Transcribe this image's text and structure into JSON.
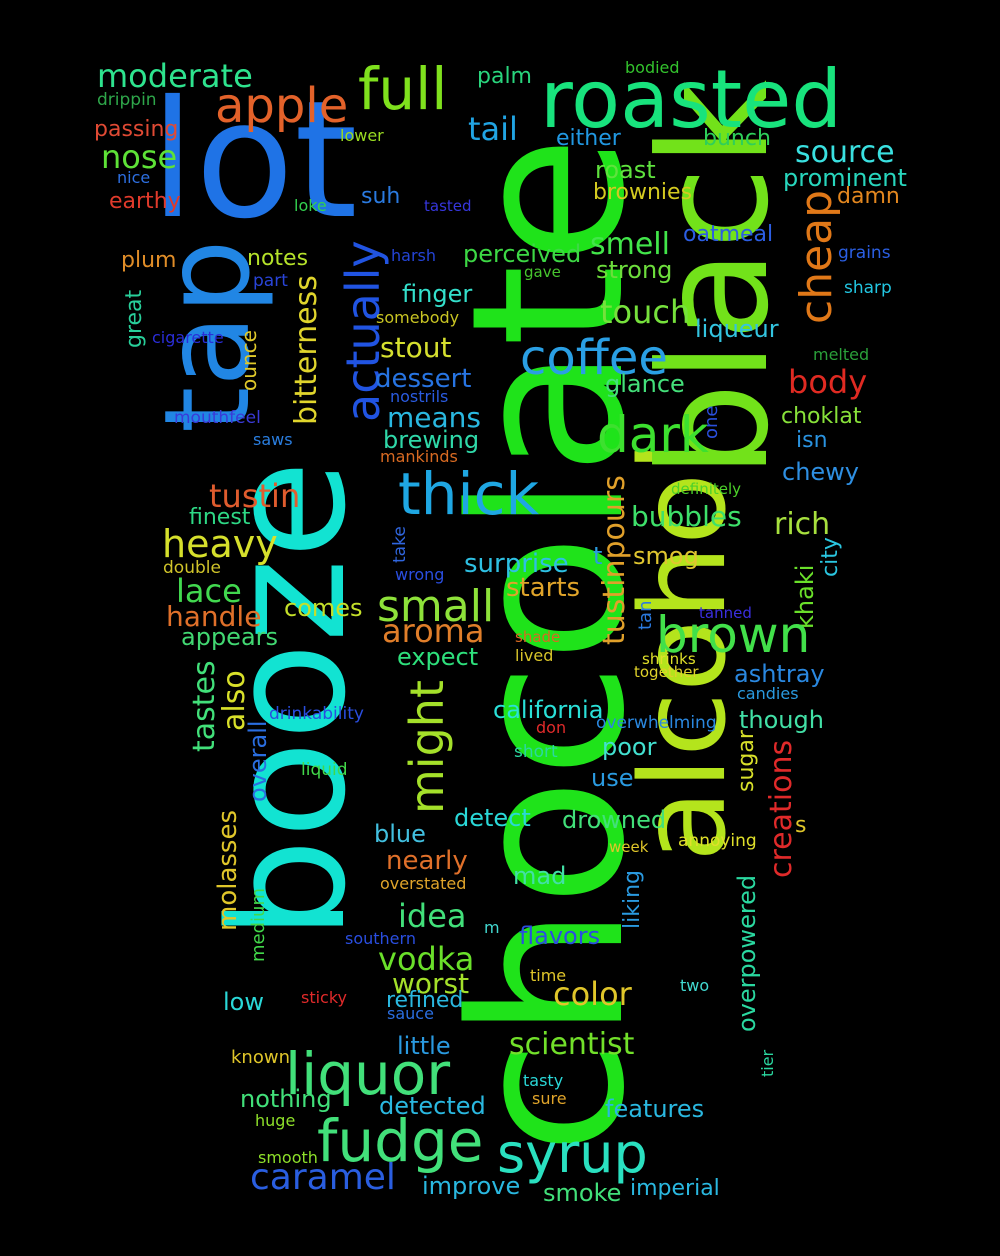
{
  "words": [
    {
      "t": "chocolate",
      "c": "#1fe31a"
    },
    {
      "t": "booze",
      "c": "#12e3d2"
    },
    {
      "t": "alcohol",
      "c": "#b4e41c"
    },
    {
      "t": "black",
      "c": "#72e21a"
    },
    {
      "t": "lot",
      "c": "#1f73e6"
    },
    {
      "t": "roasted",
      "c": "#18e37d"
    },
    {
      "t": "tap",
      "c": "#2186e4"
    },
    {
      "t": "full",
      "c": "#7fe11d"
    },
    {
      "t": "apple",
      "c": "#e3622a"
    },
    {
      "t": "moderate",
      "c": "#2ee38e"
    },
    {
      "t": "nose",
      "c": "#5ee237"
    },
    {
      "t": "tail",
      "c": "#21a4e3"
    },
    {
      "t": "palm",
      "c": "#29d57d"
    },
    {
      "t": "bodied",
      "c": "#33c22d"
    },
    {
      "t": "drippin",
      "c": "#2ea64a"
    },
    {
      "t": "passing",
      "c": "#e04a34"
    },
    {
      "t": "lower",
      "c": "#9adc22"
    },
    {
      "t": "either",
      "c": "#2198e2"
    },
    {
      "t": "bunch",
      "c": "#2ecf5a"
    },
    {
      "t": "source",
      "c": "#3ae0e0"
    },
    {
      "t": "nice",
      "c": "#2d6fe1"
    },
    {
      "t": "earthy",
      "c": "#e03a2b"
    },
    {
      "t": "suh",
      "c": "#2a7ae0"
    },
    {
      "t": "loke",
      "c": "#33d24f"
    },
    {
      "t": "tasted",
      "c": "#3636dc"
    },
    {
      "t": "roast",
      "c": "#5fe23e"
    },
    {
      "t": "prominent",
      "c": "#28d6bd"
    },
    {
      "t": "brownies",
      "c": "#d4ca20"
    },
    {
      "t": "damn",
      "c": "#e3871f"
    },
    {
      "t": "cheap",
      "c": "#e07818"
    },
    {
      "t": "oatmeal",
      "c": "#2c5ee3"
    },
    {
      "t": "grains",
      "c": "#2b5fe3"
    },
    {
      "t": "sharp",
      "c": "#22c6e1"
    },
    {
      "t": "plum",
      "c": "#e08d28"
    },
    {
      "t": "notes",
      "c": "#b5e22a"
    },
    {
      "t": "harsh",
      "c": "#2444d7"
    },
    {
      "t": "perceived",
      "c": "#3dd845"
    },
    {
      "t": "gave",
      "c": "#47c52e"
    },
    {
      "t": "smell",
      "c": "#42e64a"
    },
    {
      "t": "strong",
      "c": "#6ddd3c"
    },
    {
      "t": "part",
      "c": "#2944d8"
    },
    {
      "t": "actually",
      "c": "#2154e2"
    },
    {
      "t": "finger",
      "c": "#34e0cc"
    },
    {
      "t": "great",
      "c": "#28cf9a"
    },
    {
      "t": "bitterness",
      "c": "#e0d52c"
    },
    {
      "t": "somebody",
      "c": "#c8c423"
    },
    {
      "t": "cigarette",
      "c": "#2a2dd8"
    },
    {
      "t": "ounce",
      "c": "#e0c92a"
    },
    {
      "t": "touch",
      "c": "#76e13c"
    },
    {
      "t": "liqueur",
      "c": "#33c4e0"
    },
    {
      "t": "melted",
      "c": "#2aa03a"
    },
    {
      "t": "coffee",
      "c": "#2a9fe4"
    },
    {
      "t": "stout",
      "c": "#d6e02f"
    },
    {
      "t": "body",
      "c": "#e02a22"
    },
    {
      "t": "dessert",
      "c": "#2774e2"
    },
    {
      "t": "nostrils",
      "c": "#2a5be0"
    },
    {
      "t": "glance",
      "c": "#44e07a"
    },
    {
      "t": "mouthfeel",
      "c": "#3a3ad8"
    },
    {
      "t": "means",
      "c": "#2ab8e0"
    },
    {
      "t": "choklat",
      "c": "#88e23a"
    },
    {
      "t": "dark",
      "c": "#3de02f"
    },
    {
      "t": "one",
      "c": "#2a4fdc"
    },
    {
      "t": "saws",
      "c": "#2a7ee0"
    },
    {
      "t": "brewing",
      "c": "#2fd8a8"
    },
    {
      "t": "isn",
      "c": "#2a93e0"
    },
    {
      "t": "mankinds",
      "c": "#d86a22"
    },
    {
      "t": "chewy",
      "c": "#2e8fe2"
    },
    {
      "t": "thick",
      "c": "#1fa7e3"
    },
    {
      "t": "definitely",
      "c": "#4cd12a"
    },
    {
      "t": "tustin",
      "c": "#e05c2e"
    },
    {
      "t": "finest",
      "c": "#2ed885"
    },
    {
      "t": "tustinpours",
      "c": "#e0a02a"
    },
    {
      "t": "bubbles",
      "c": "#3ee06a"
    },
    {
      "t": "rich",
      "c": "#a7e03e"
    },
    {
      "t": "heavy",
      "c": "#d6e02c"
    },
    {
      "t": "take",
      "c": "#3066df"
    },
    {
      "t": "double",
      "c": "#d0c42a"
    },
    {
      "t": "wrong",
      "c": "#2a4ee0"
    },
    {
      "t": "surprise",
      "c": "#2ec0e3"
    },
    {
      "t": "t",
      "c": "#2a9ce0"
    },
    {
      "t": "smog",
      "c": "#e0c630"
    },
    {
      "t": "city",
      "c": "#2ac6e0"
    },
    {
      "t": "lace",
      "c": "#42d84f"
    },
    {
      "t": "small",
      "c": "#8ee23a"
    },
    {
      "t": "starts",
      "c": "#e0a42a"
    },
    {
      "t": "khaki",
      "c": "#6ae02a"
    },
    {
      "t": "handle",
      "c": "#e0702a"
    },
    {
      "t": "comes",
      "c": "#c4e02a"
    },
    {
      "t": "tan",
      "c": "#2a7ae0"
    },
    {
      "t": "tanned",
      "c": "#3a2ee0"
    },
    {
      "t": "appears",
      "c": "#42d872"
    },
    {
      "t": "aroma",
      "c": "#e07e2a"
    },
    {
      "t": "brown",
      "c": "#42e04a"
    },
    {
      "t": "shade",
      "c": "#d86a22"
    },
    {
      "t": "lived",
      "c": "#d8c42a"
    },
    {
      "t": "shrinks",
      "c": "#e0e02a"
    },
    {
      "t": "expect",
      "c": "#2ee07c"
    },
    {
      "t": "together",
      "c": "#e0d22a"
    },
    {
      "t": "ashtray",
      "c": "#2a88e0"
    },
    {
      "t": "candies",
      "c": "#2a9ae0"
    },
    {
      "t": "tastes",
      "c": "#42e07a"
    },
    {
      "t": "also",
      "c": "#d8e02a"
    },
    {
      "t": "drinkability",
      "c": "#2a4ee0"
    },
    {
      "t": "might",
      "c": "#a4e02a"
    },
    {
      "t": "california",
      "c": "#2ae0d8"
    },
    {
      "t": "don",
      "c": "#e02a2a"
    },
    {
      "t": "overwhelming",
      "c": "#2a88e0"
    },
    {
      "t": "though",
      "c": "#42e0a6"
    },
    {
      "t": "overall",
      "c": "#2a6ee0"
    },
    {
      "t": "liquid",
      "c": "#42d84a"
    },
    {
      "t": "short",
      "c": "#2ad8a0"
    },
    {
      "t": "poor",
      "c": "#42e0d0"
    },
    {
      "t": "sugar",
      "c": "#d8e02a"
    },
    {
      "t": "creations",
      "c": "#e02a2a"
    },
    {
      "t": "use",
      "c": "#2a9ae0"
    },
    {
      "t": "molasses",
      "c": "#e0c62a"
    },
    {
      "t": "blue",
      "c": "#42c0e0"
    },
    {
      "t": "detect",
      "c": "#2ad8d8"
    },
    {
      "t": "drowned",
      "c": "#42e07a"
    },
    {
      "t": "s",
      "c": "#e0c62a"
    },
    {
      "t": "week",
      "c": "#e0c62a"
    },
    {
      "t": "annoying",
      "c": "#e0e02a"
    },
    {
      "t": "nearly",
      "c": "#e0702a"
    },
    {
      "t": "mad",
      "c": "#42e0a6"
    },
    {
      "t": "overstated",
      "c": "#e0a42a"
    },
    {
      "t": "liking",
      "c": "#2a9ae0"
    },
    {
      "t": "medium",
      "c": "#42d84a"
    },
    {
      "t": "idea",
      "c": "#42e07a"
    },
    {
      "t": "m",
      "c": "#42d8d0"
    },
    {
      "t": "southern",
      "c": "#2a4ee0"
    },
    {
      "t": "flavors",
      "c": "#2a4ee0"
    },
    {
      "t": "overpowered",
      "c": "#2ad8a0"
    },
    {
      "t": "vodka",
      "c": "#6ae02a"
    },
    {
      "t": "worst",
      "c": "#a4e02a"
    },
    {
      "t": "time",
      "c": "#e0c62a"
    },
    {
      "t": "two",
      "c": "#42d8d0"
    },
    {
      "t": "color",
      "c": "#e0c62a"
    },
    {
      "t": "low",
      "c": "#2ad8d8"
    },
    {
      "t": "sticky",
      "c": "#e02a2a"
    },
    {
      "t": "refined",
      "c": "#2ab8e0"
    },
    {
      "t": "sauce",
      "c": "#2a6ee0"
    },
    {
      "t": "scientist",
      "c": "#72e02a"
    },
    {
      "t": "little",
      "c": "#2a9ae0"
    },
    {
      "t": "liquor",
      "c": "#42e07a"
    },
    {
      "t": "known",
      "c": "#e0c62a"
    },
    {
      "t": "tier",
      "c": "#2ad8a0"
    },
    {
      "t": "tasty",
      "c": "#2ad8d8"
    },
    {
      "t": "sure",
      "c": "#e0a42a"
    },
    {
      "t": "nothing",
      "c": "#42e07a"
    },
    {
      "t": "detected",
      "c": "#2ab8e0"
    },
    {
      "t": "features",
      "c": "#2ab8e0"
    },
    {
      "t": "huge",
      "c": "#8ee02a"
    },
    {
      "t": "fudge",
      "c": "#42e07a"
    },
    {
      "t": "syrup",
      "c": "#2ae0c0"
    },
    {
      "t": "smooth",
      "c": "#8ee02a"
    },
    {
      "t": "caramel",
      "c": "#2a5ee0"
    },
    {
      "t": "improve",
      "c": "#2ab8e0"
    },
    {
      "t": "smoke",
      "c": "#42e07a"
    },
    {
      "t": "imperial",
      "c": "#2ab8e0"
    }
  ]
}
